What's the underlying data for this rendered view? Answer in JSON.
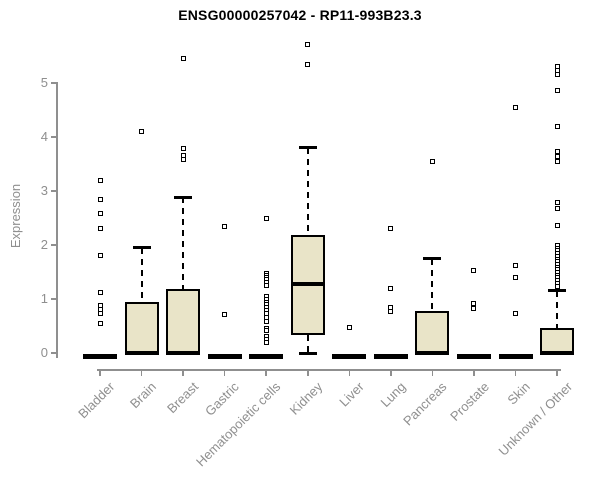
{
  "title": "ENSG00000257042 - RP11-993B23.3",
  "chart_data": {
    "type": "box",
    "title": "ENSG00000257042 - RP11-993B23.3",
    "xlabel": "",
    "ylabel": "Expression",
    "ylim": [
      0,
      5.8
    ],
    "yticks": [
      0,
      1,
      2,
      3,
      4,
      5
    ],
    "grid": false,
    "legend": "none",
    "categories": [
      "Bladder",
      "Brain",
      "Breast",
      "Gastric",
      "Hematopoietic cells",
      "Kidney",
      "Liver",
      "Lung",
      "Pancreas",
      "Prostate",
      "Skin",
      "Unknown / Other"
    ],
    "boxes": [
      {
        "label": "Bladder",
        "q1": 0,
        "median": 0,
        "q3": 0,
        "whisker_low": 0,
        "whisker_high": 0,
        "outliers": [
          3.2,
          2.85,
          2.58,
          2.3,
          1.8,
          1.12,
          0.88,
          0.8,
          0.73,
          0.55
        ]
      },
      {
        "label": "Brain",
        "q1": 0,
        "median": 0,
        "q3": 0.95,
        "whisker_low": 0,
        "whisker_high": 1.95,
        "outliers": [
          4.1
        ]
      },
      {
        "label": "Breast",
        "q1": 0,
        "median": 0,
        "q3": 1.18,
        "whisker_low": 0,
        "whisker_high": 2.88,
        "outliers": [
          5.45,
          3.78,
          3.66,
          3.58
        ]
      },
      {
        "label": "Gastric",
        "q1": 0,
        "median": 0,
        "q3": 0,
        "whisker_low": 0,
        "whisker_high": 0,
        "outliers": [
          2.35,
          0.72
        ]
      },
      {
        "label": "Hematopoietic cells",
        "q1": 0,
        "median": 0,
        "q3": 0,
        "whisker_low": 0,
        "whisker_high": 0,
        "outliers": [
          2.5,
          1.48,
          1.44,
          1.4,
          1.36,
          1.3,
          1.25,
          1.04,
          0.99,
          0.94,
          0.89,
          0.84,
          0.79,
          0.74,
          0.65,
          0.59,
          0.46,
          0.41,
          0.3,
          0.25,
          0.19
        ]
      },
      {
        "label": "Kidney",
        "q1": 0.33,
        "median": 1.27,
        "q3": 2.18,
        "whisker_low": 0,
        "whisker_high": 3.8,
        "outliers": [
          5.72,
          5.35
        ]
      },
      {
        "label": "Liver",
        "q1": 0,
        "median": 0,
        "q3": 0,
        "whisker_low": 0,
        "whisker_high": 0,
        "outliers": [
          0.47
        ]
      },
      {
        "label": "Lung",
        "q1": 0,
        "median": 0,
        "q3": 0,
        "whisker_low": 0,
        "whisker_high": 0,
        "outliers": [
          2.3,
          1.2,
          0.85,
          0.76
        ]
      },
      {
        "label": "Pancreas",
        "q1": 0,
        "median": 0,
        "q3": 0.78,
        "whisker_low": 0,
        "whisker_high": 1.75,
        "outliers": [
          3.55
        ]
      },
      {
        "label": "Prostate",
        "q1": 0,
        "median": 0,
        "q3": 0,
        "whisker_low": 0,
        "whisker_high": 0,
        "outliers": [
          1.52,
          0.91,
          0.83
        ]
      },
      {
        "label": "Skin",
        "q1": 0,
        "median": 0,
        "q3": 0,
        "whisker_low": 0,
        "whisker_high": 0,
        "outliers": [
          4.55,
          1.62,
          1.39,
          0.73
        ]
      },
      {
        "label": "Unknown / Other",
        "q1": 0,
        "median": 0,
        "q3": 0.46,
        "whisker_low": 0,
        "whisker_high": 1.15,
        "outliers": [
          5.3,
          5.23,
          5.16,
          4.87,
          4.2,
          3.73,
          3.63,
          3.55,
          2.78,
          2.68,
          2.37,
          1.99,
          1.94,
          1.89,
          1.84,
          1.79,
          1.74,
          1.69,
          1.64,
          1.59,
          1.54,
          1.49,
          1.44,
          1.39,
          1.34,
          1.29,
          1.24
        ]
      }
    ],
    "colors": {
      "box_fill": "#e9e4c8",
      "box_border": "#000000",
      "median": "#000000",
      "outlier_marker": "open-square",
      "axis": "#8f8f8f",
      "tick_text": "#8f8f8f",
      "title_text": "#000000"
    }
  }
}
